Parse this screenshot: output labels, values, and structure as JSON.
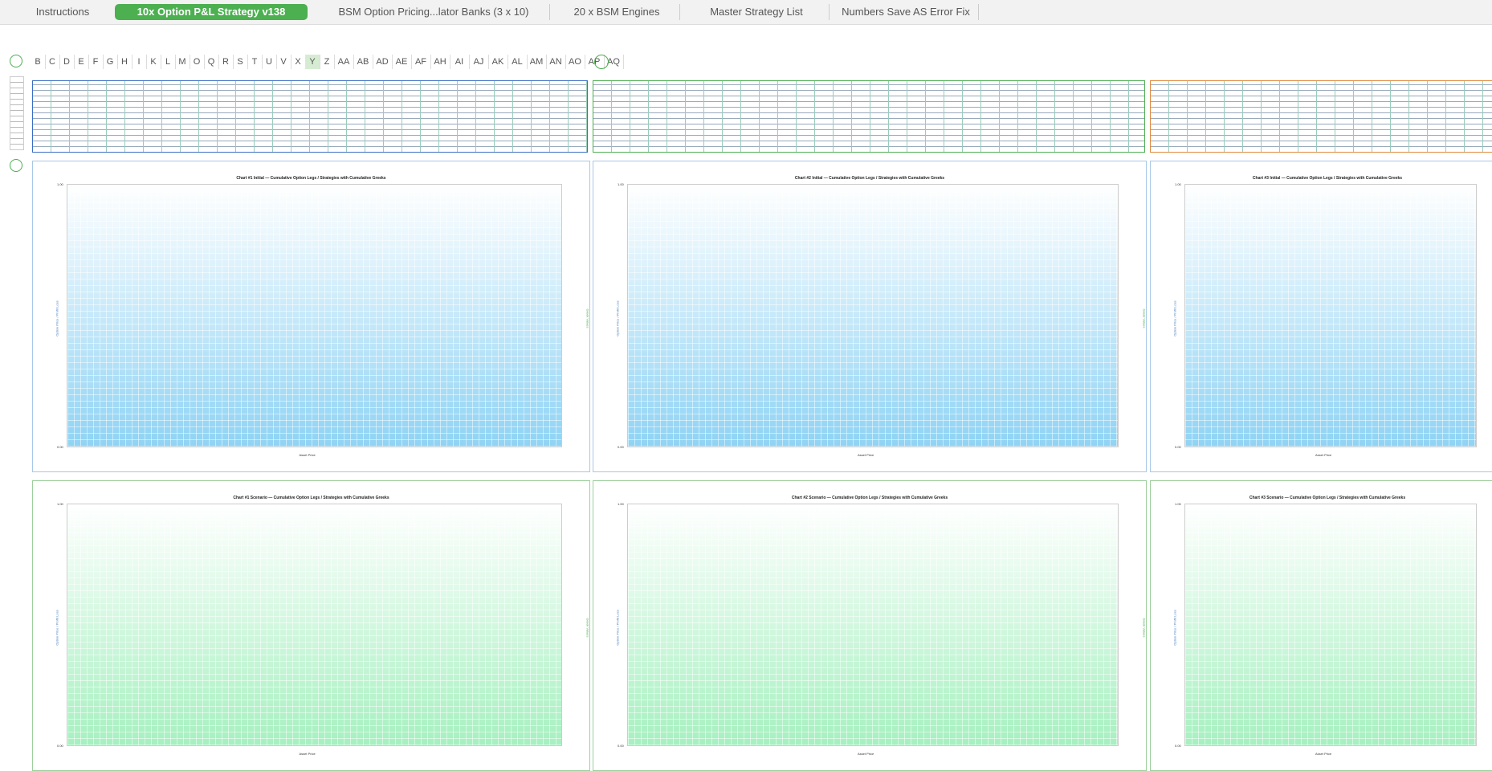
{
  "tabs": [
    "Instructions",
    "10x Option P&L Strategy v138",
    "BSM Option Pricing...lator Banks (3 x 10)",
    "20 x BSM Engines",
    "Master Strategy List",
    "Numbers Save AS Error Fix"
  ],
  "active_tab": 1,
  "columns": [
    "B",
    "C",
    "D",
    "E",
    "F",
    "G",
    "H",
    "I",
    "K",
    "L",
    "M",
    "O",
    "Q",
    "R",
    "S",
    "T",
    "U",
    "V",
    "X",
    "Y",
    "Z",
    "AA",
    "AB",
    "AD",
    "AE",
    "AF",
    "AH",
    "AI",
    "AJ",
    "AK",
    "AL",
    "AM",
    "AN",
    "AO",
    "AP",
    "AQ"
  ],
  "selected_column": 19,
  "charts": [
    {
      "title": "Chart #1 Initial — Cumulative Option Legs / Strategies with Cumulative Greeks",
      "y_label": "Option Price / Profit Loss",
      "x_label": "Asset Price",
      "y2_label": "Greek Values",
      "y_top": "1.00",
      "y_bottom": "0.00",
      "style": "initial"
    },
    {
      "title": "Chart #2 Initial — Cumulative Option Legs / Strategies with Cumulative Greeks",
      "y_label": "Option Price / Profit Loss",
      "x_label": "Asset Price",
      "y2_label": "Greek Values",
      "y_top": "1.00",
      "y_bottom": "0.00",
      "style": "initial"
    },
    {
      "title": "Chart #3 Initial — Cumulative Option Legs / Strategies with Cumulative Greeks",
      "y_label": "Option Price / Profit Loss",
      "x_label": "Asset Price",
      "y2_label": "Greek Values",
      "y_top": "1.00",
      "y_bottom": "0.00",
      "style": "initial"
    },
    {
      "title": "Chart #1 Scenario — Cumulative Option Legs / Strategies with Cumulative Greeks",
      "y_label": "Option Price / Profit Loss",
      "x_label": "Asset Price",
      "y2_label": "Greek Values",
      "y_top": "1.00",
      "y_bottom": "0.00",
      "style": "scenario"
    },
    {
      "title": "Chart #2 Scenario — Cumulative Option Legs / Strategies with Cumulative Greeks",
      "y_label": "Option Price / Profit Loss",
      "x_label": "Asset Price",
      "y2_label": "Greek Values",
      "y_top": "1.00",
      "y_bottom": "0.00",
      "style": "scenario"
    },
    {
      "title": "Chart #3 Scenario — Cumulative Option Legs / Strategies with Cumulative Greeks",
      "y_label": "Option Price / Profit Loss",
      "x_label": "Asset Price",
      "y2_label": "Greek Values",
      "y_top": "1.00",
      "y_bottom": "0.00",
      "style": "scenario"
    }
  ]
}
